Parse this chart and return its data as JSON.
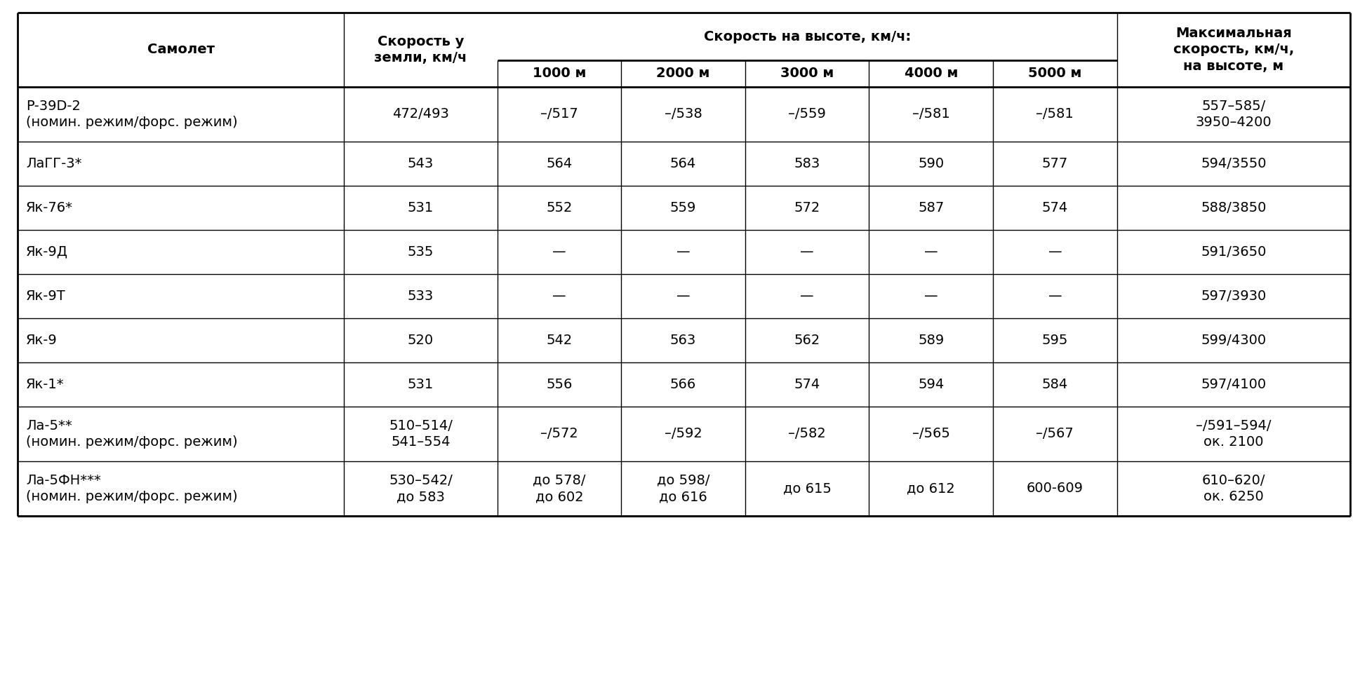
{
  "bg_color": "#ffffff",
  "text_color": "#000000",
  "speed_header": "Скорость на высоте, км/ч:",
  "col0_header": "Самолет",
  "col1_header": "Скорость у\nземли, км/ч",
  "col7_header": "Максимальная\nскорость, км/ч,\nна высоте, м",
  "alt_headers": [
    "1000 м",
    "2000 м",
    "3000 м",
    "4000 м",
    "5000 м"
  ],
  "rows": [
    [
      "Р-39D-2\n(номин. режим/форс. режим)",
      "472/493",
      "–/517",
      "–/538",
      "–/559",
      "–/581",
      "–/581",
      "557–585/\n3950–4200"
    ],
    [
      "ЛаГГ-3*",
      "543",
      "564",
      "564",
      "583",
      "590",
      "577",
      "594/3550"
    ],
    [
      "Як-76*",
      "531",
      "552",
      "559",
      "572",
      "587",
      "574",
      "588/3850"
    ],
    [
      "Як-9Д",
      "535",
      "—",
      "—",
      "—",
      "—",
      "—",
      "591/3650"
    ],
    [
      "Як-9Т",
      "533",
      "—",
      "—",
      "—",
      "—",
      "—",
      "597/3930"
    ],
    [
      "Як-9",
      "520",
      "542",
      "563",
      "562",
      "589",
      "595",
      "599/4300"
    ],
    [
      "Як-1*",
      "531",
      "556",
      "566",
      "574",
      "594",
      "584",
      "597/4100"
    ],
    [
      "Ла-5**\n(номин. режим/форс. режим)",
      "510–514/\n541–554",
      "–/572",
      "–/592",
      "–/582",
      "–/565",
      "–/567",
      "–/591–594/\nок. 2100"
    ],
    [
      "Ла-5ФН***\n(номин. режим/форс. режим)",
      "530–542/\nдо 583",
      "до 578/\nдо 602",
      "до 598/\nдо 616",
      "до 615",
      "до 612",
      "600-609",
      "610–620/\nок. 6250"
    ]
  ],
  "figsize": [
    19.49,
    9.8
  ],
  "dpi": 100,
  "font_size": 14,
  "header_font_size": 14,
  "lw_outer": 2.0,
  "lw_inner": 1.0,
  "lw_header_divider": 2.0
}
